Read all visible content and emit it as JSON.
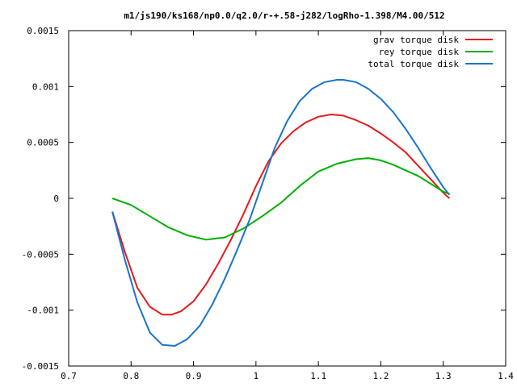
{
  "chart_data": {
    "type": "line",
    "title": "m1/js190/ks168/np0.0/q2.0/r-+.58-j282/logRho-1.398/M4.00/512",
    "xlabel": "",
    "ylabel": "",
    "xlim": [
      0.7,
      1.4
    ],
    "ylim": [
      -0.0015,
      0.0015
    ],
    "xticks": [
      0.7,
      0.8,
      0.9,
      1.0,
      1.1,
      1.2,
      1.3,
      1.4
    ],
    "xtick_labels": [
      "0.7",
      "0.8",
      "0.9",
      "1",
      "1.1",
      "1.2",
      "1.3",
      "1.4"
    ],
    "yticks": [
      -0.0015,
      -0.001,
      -0.0005,
      0,
      0.0005,
      0.001,
      0.0015
    ],
    "ytick_labels": [
      "-0.0015",
      "-0.001",
      "-0.0005",
      "0",
      "0.0005",
      "0.001",
      "0.0015"
    ],
    "grid": false,
    "legend_position": "top-right",
    "series": [
      {
        "name": "grav torque disk",
        "color": "#e41a1c",
        "x": [
          0.77,
          0.79,
          0.81,
          0.83,
          0.85,
          0.865,
          0.88,
          0.9,
          0.92,
          0.94,
          0.96,
          0.98,
          1.0,
          1.02,
          1.04,
          1.06,
          1.08,
          1.1,
          1.12,
          1.14,
          1.16,
          1.18,
          1.2,
          1.22,
          1.24,
          1.26,
          1.28,
          1.3,
          1.31
        ],
        "y": [
          -0.00012,
          -0.00048,
          -0.0008,
          -0.00097,
          -0.00104,
          -0.00104,
          -0.00101,
          -0.00092,
          -0.00077,
          -0.00058,
          -0.00037,
          -0.00014,
          0.00011,
          0.00033,
          0.00049,
          0.0006,
          0.00068,
          0.00073,
          0.00075,
          0.00074,
          0.0007,
          0.00065,
          0.00058,
          0.0005,
          0.00041,
          0.00029,
          0.00017,
          5e-05,
          0.0
        ]
      },
      {
        "name": "rey torque disk",
        "color": "#00b000",
        "x": [
          0.77,
          0.8,
          0.83,
          0.86,
          0.89,
          0.92,
          0.95,
          0.98,
          1.01,
          1.04,
          1.07,
          1.1,
          1.13,
          1.16,
          1.18,
          1.2,
          1.22,
          1.24,
          1.26,
          1.28,
          1.3,
          1.31
        ],
        "y": [
          0.0,
          -6e-05,
          -0.00016,
          -0.00026,
          -0.00033,
          -0.00037,
          -0.00035,
          -0.00027,
          -0.00016,
          -4e-05,
          0.00011,
          0.00024,
          0.00031,
          0.00035,
          0.00036,
          0.00034,
          0.0003,
          0.00025,
          0.0002,
          0.00013,
          6e-05,
          4e-05
        ]
      },
      {
        "name": "total torque disk",
        "color": "#1874cd",
        "x": [
          0.77,
          0.79,
          0.81,
          0.83,
          0.85,
          0.87,
          0.89,
          0.91,
          0.93,
          0.95,
          0.97,
          0.99,
          1.01,
          1.03,
          1.05,
          1.07,
          1.09,
          1.11,
          1.13,
          1.14,
          1.16,
          1.18,
          1.2,
          1.22,
          1.24,
          1.26,
          1.28,
          1.3,
          1.31
        ],
        "y": [
          -0.00012,
          -0.00055,
          -0.00093,
          -0.0012,
          -0.00131,
          -0.00132,
          -0.00126,
          -0.00114,
          -0.00095,
          -0.00072,
          -0.00046,
          -0.00019,
          0.00013,
          0.00045,
          0.00069,
          0.00087,
          0.00098,
          0.00104,
          0.00106,
          0.00106,
          0.00104,
          0.00098,
          0.00089,
          0.00077,
          0.00062,
          0.00045,
          0.00027,
          0.0001,
          3e-05
        ]
      }
    ]
  }
}
